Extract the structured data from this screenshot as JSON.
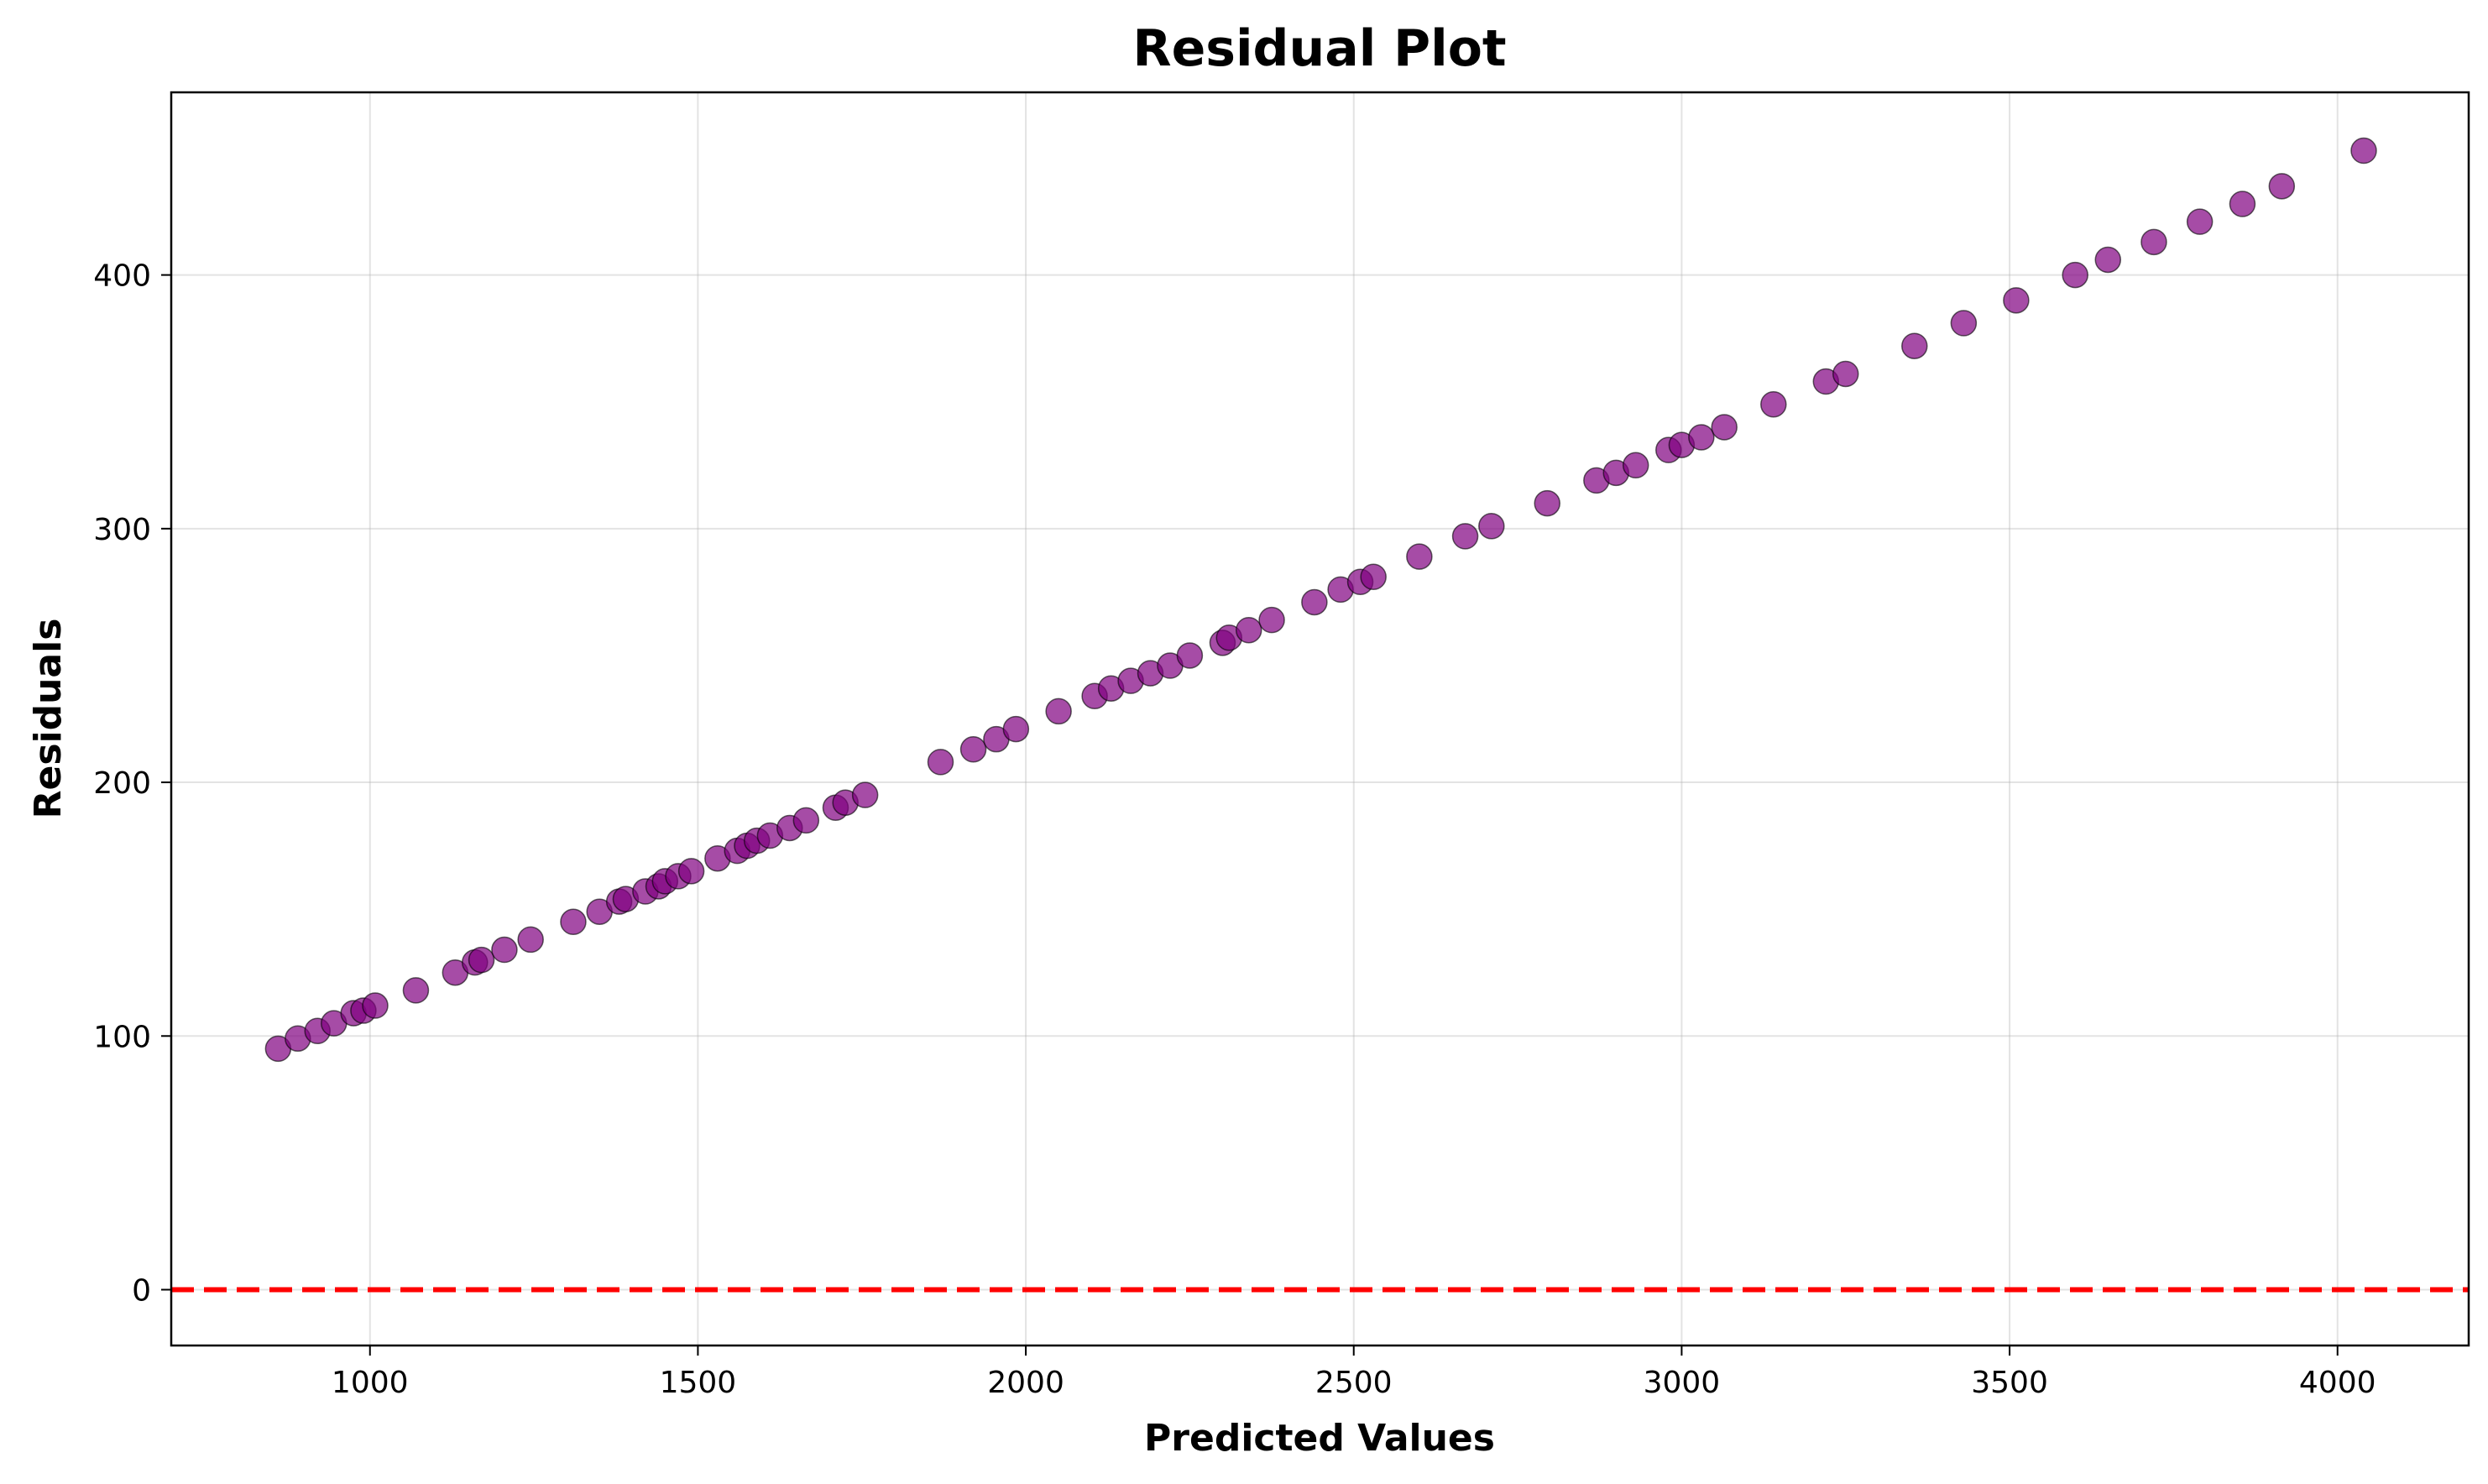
{
  "chart_data": {
    "type": "scatter",
    "title": "Residual Plot",
    "xlabel": "Predicted Values",
    "ylabel": "Residuals",
    "xlim": [
      697,
      4200
    ],
    "ylim": [
      -22,
      472
    ],
    "xticks": [
      1000,
      1500,
      2000,
      2500,
      3000,
      3500,
      4000
    ],
    "yticks": [
      0,
      100,
      200,
      300,
      400
    ],
    "grid": true,
    "point_color": "#800080",
    "reference_line": {
      "y": 0,
      "style": "dashed",
      "color": "#ff0000"
    },
    "points": [
      [
        860,
        95
      ],
      [
        890,
        99
      ],
      [
        920,
        102
      ],
      [
        945,
        105
      ],
      [
        975,
        109
      ],
      [
        990,
        110
      ],
      [
        1008,
        112
      ],
      [
        1070,
        118
      ],
      [
        1130,
        125
      ],
      [
        1160,
        129
      ],
      [
        1170,
        130
      ],
      [
        1205,
        134
      ],
      [
        1245,
        138
      ],
      [
        1310,
        145
      ],
      [
        1350,
        149
      ],
      [
        1380,
        153
      ],
      [
        1390,
        154
      ],
      [
        1420,
        157
      ],
      [
        1440,
        159
      ],
      [
        1450,
        161
      ],
      [
        1470,
        163
      ],
      [
        1490,
        165
      ],
      [
        1530,
        170
      ],
      [
        1560,
        173
      ],
      [
        1575,
        175
      ],
      [
        1590,
        177
      ],
      [
        1610,
        179
      ],
      [
        1640,
        182
      ],
      [
        1665,
        185
      ],
      [
        1710,
        190
      ],
      [
        1725,
        192
      ],
      [
        1755,
        195
      ],
      [
        1870,
        208
      ],
      [
        1920,
        213
      ],
      [
        1955,
        217
      ],
      [
        1985,
        221
      ],
      [
        2050,
        228
      ],
      [
        2105,
        234
      ],
      [
        2130,
        237
      ],
      [
        2160,
        240
      ],
      [
        2190,
        243
      ],
      [
        2220,
        246
      ],
      [
        2250,
        250
      ],
      [
        2300,
        255
      ],
      [
        2310,
        257
      ],
      [
        2340,
        260
      ],
      [
        2375,
        264
      ],
      [
        2440,
        271
      ],
      [
        2480,
        276
      ],
      [
        2510,
        279
      ],
      [
        2530,
        281
      ],
      [
        2600,
        289
      ],
      [
        2670,
        297
      ],
      [
        2710,
        301
      ],
      [
        2795,
        310
      ],
      [
        2870,
        319
      ],
      [
        2900,
        322
      ],
      [
        2930,
        325
      ],
      [
        2980,
        331
      ],
      [
        3000,
        333
      ],
      [
        3030,
        336
      ],
      [
        3065,
        340
      ],
      [
        3140,
        349
      ],
      [
        3220,
        358
      ],
      [
        3250,
        361
      ],
      [
        3355,
        372
      ],
      [
        3430,
        381
      ],
      [
        3510,
        390
      ],
      [
        3600,
        400
      ],
      [
        3650,
        406
      ],
      [
        3720,
        413
      ],
      [
        3790,
        421
      ],
      [
        3855,
        428
      ],
      [
        3915,
        435
      ],
      [
        4040,
        449
      ]
    ]
  }
}
